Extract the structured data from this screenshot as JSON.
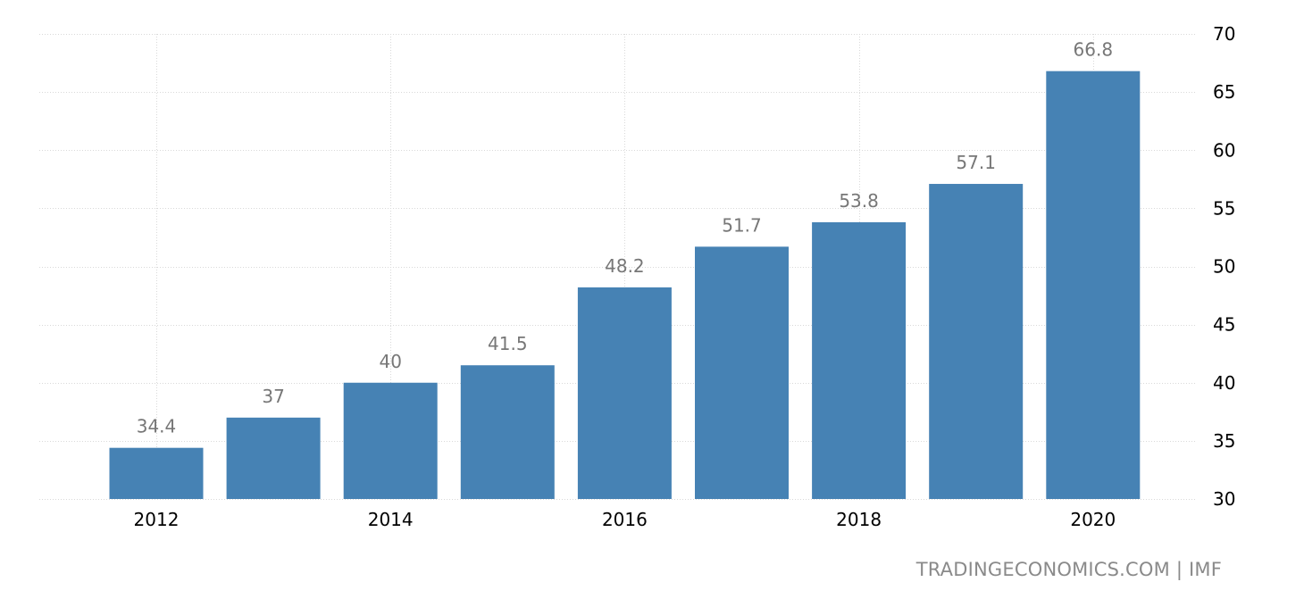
{
  "chart_data": {
    "type": "bar",
    "categories": [
      "2012",
      "2013",
      "2014",
      "2015",
      "2016",
      "2017",
      "2018",
      "2019",
      "2020"
    ],
    "values": [
      34.4,
      37,
      40,
      41.5,
      48.2,
      51.7,
      53.8,
      57.1,
      66.8
    ],
    "value_labels": [
      "34.4",
      "37",
      "40",
      "41.5",
      "48.2",
      "51.7",
      "53.8",
      "57.1",
      "66.8"
    ],
    "x_tick_labels": [
      "2012",
      "2014",
      "2016",
      "2018",
      "2020"
    ],
    "y_ticks": [
      30,
      35,
      40,
      45,
      50,
      55,
      60,
      65,
      70
    ],
    "ylim": [
      30,
      70
    ],
    "y_axis_position": "right",
    "grid": true,
    "bar_color": "#4682b4",
    "label_color": "#777777"
  },
  "source": {
    "text": "TRADINGECONOMICS.COM | IMF"
  }
}
